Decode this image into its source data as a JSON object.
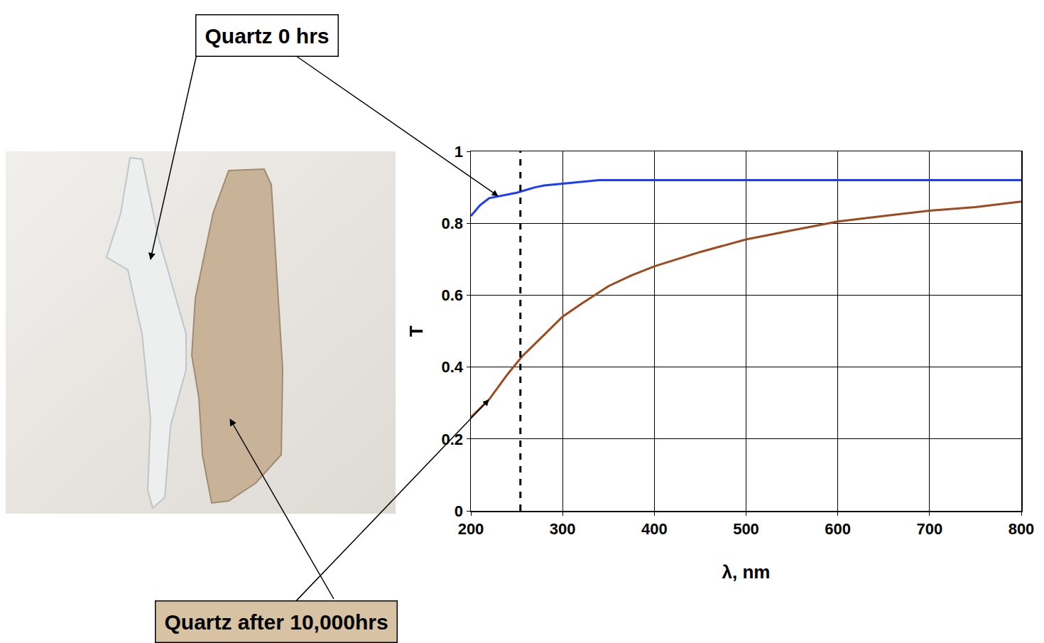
{
  "chart_data": {
    "type": "line",
    "x_label": "λ, nm",
    "y_label": "T",
    "series": [
      {
        "name": "Quartz 0 hrs",
        "color": "#1a3cff",
        "x": [
          200,
          210,
          220,
          230,
          250,
          270,
          280,
          300,
          320,
          340,
          400,
          500,
          600,
          700,
          800
        ],
        "values": [
          0.82,
          0.85,
          0.87,
          0.875,
          0.885,
          0.9,
          0.905,
          0.91,
          0.915,
          0.92,
          0.92,
          0.92,
          0.92,
          0.92,
          0.92
        ]
      },
      {
        "name": "Quartz after 10,000hrs",
        "color": "#9c4a1e",
        "x": [
          200,
          220,
          240,
          256,
          280,
          300,
          320,
          350,
          375,
          400,
          450,
          500,
          550,
          600,
          650,
          700,
          750,
          800
        ],
        "values": [
          0.26,
          0.31,
          0.38,
          0.43,
          0.49,
          0.54,
          0.575,
          0.625,
          0.655,
          0.68,
          0.72,
          0.755,
          0.78,
          0.805,
          0.82,
          0.835,
          0.845,
          0.86
        ]
      }
    ],
    "vline_x": 254,
    "xlim": [
      200,
      800
    ],
    "xticks": [
      200,
      300,
      400,
      500,
      600,
      700,
      800
    ],
    "ylim": [
      0,
      1
    ],
    "yticks": [
      0,
      0.2,
      0.4,
      0.6,
      0.8,
      1
    ],
    "grid": true
  }
}
